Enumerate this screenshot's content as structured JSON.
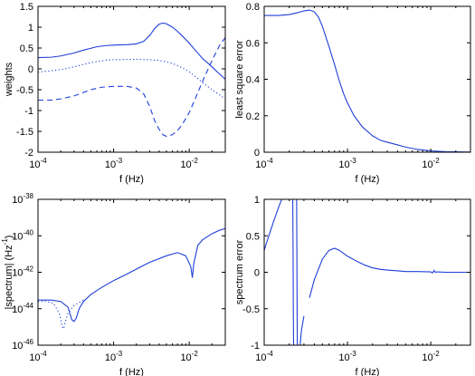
{
  "colors": {
    "series": "#1f3fd8",
    "axes": "#000000",
    "background": "#ffffff"
  },
  "chart_data": [
    {
      "id": "weights",
      "type": "line",
      "xlabel": "f (Hz)",
      "ylabel": "weights",
      "xscale": "log",
      "xlim": [
        0.0001,
        0.03
      ],
      "ylim": [
        -2,
        1.5
      ],
      "yticks": [
        -2,
        -1.5,
        -1,
        -0.5,
        0,
        0.5,
        1,
        1.5
      ],
      "ytick_labels": [
        "-2",
        "-1.5",
        "-1",
        "-0.5",
        "0",
        "0.5",
        "1",
        "1.5"
      ],
      "xtick_labels": [
        {
          "base": "10",
          "exp": "-4",
          "value": 0.0001
        },
        {
          "base": "10",
          "exp": "-3",
          "value": 0.001
        },
        {
          "base": "10",
          "exp": "-2",
          "value": 0.01
        }
      ],
      "series": [
        {
          "style": "solid",
          "x": [
            0.0001,
            0.00015,
            0.0002,
            0.0003,
            0.0004,
            0.0006,
            0.0008,
            0.001,
            0.0015,
            0.002,
            0.0025,
            0.003,
            0.0035,
            0.004,
            0.0045,
            0.005,
            0.006,
            0.007,
            0.008,
            0.01,
            0.012,
            0.015,
            0.02,
            0.025,
            0.03
          ],
          "y": [
            0.27,
            0.28,
            0.31,
            0.38,
            0.45,
            0.53,
            0.56,
            0.57,
            0.58,
            0.6,
            0.66,
            0.8,
            0.97,
            1.07,
            1.1,
            1.08,
            1.0,
            0.9,
            0.8,
            0.62,
            0.45,
            0.25,
            0.05,
            -0.12,
            -0.25
          ]
        },
        {
          "style": "dotted",
          "x": [
            0.0001,
            0.0002,
            0.0003,
            0.0005,
            0.0008,
            0.001,
            0.002,
            0.003,
            0.004,
            0.005,
            0.006,
            0.007,
            0.008,
            0.01,
            0.012,
            0.015,
            0.02,
            0.025,
            0.03
          ],
          "y": [
            -0.08,
            -0.02,
            0.05,
            0.15,
            0.21,
            0.22,
            0.23,
            0.22,
            0.2,
            0.17,
            0.13,
            0.08,
            0.03,
            -0.07,
            -0.18,
            -0.33,
            -0.5,
            -0.62,
            -0.72
          ]
        },
        {
          "style": "dashed",
          "x": [
            0.0001,
            0.00015,
            0.0002,
            0.0003,
            0.0005,
            0.0007,
            0.001,
            0.0015,
            0.002,
            0.0025,
            0.003,
            0.0035,
            0.004,
            0.0045,
            0.005,
            0.006,
            0.007,
            0.008,
            0.01,
            0.012,
            0.015,
            0.02,
            0.025,
            0.03
          ],
          "y": [
            -0.75,
            -0.75,
            -0.72,
            -0.65,
            -0.5,
            -0.44,
            -0.42,
            -0.42,
            -0.46,
            -0.6,
            -0.9,
            -1.25,
            -1.45,
            -1.58,
            -1.62,
            -1.58,
            -1.48,
            -1.35,
            -1.05,
            -0.72,
            -0.3,
            0.2,
            0.55,
            0.75
          ]
        }
      ]
    },
    {
      "id": "least-square-error",
      "type": "line",
      "xlabel": "f (Hz)",
      "ylabel": "least square error",
      "xscale": "log",
      "xlim": [
        0.0001,
        0.03
      ],
      "ylim": [
        0,
        0.8
      ],
      "yticks": [
        0,
        0.2,
        0.4,
        0.6,
        0.8
      ],
      "ytick_labels": [
        "0",
        "0.2",
        "0.4",
        "0.6",
        "0.8"
      ],
      "xtick_labels": [
        {
          "base": "10",
          "exp": "-4",
          "value": 0.0001
        },
        {
          "base": "10",
          "exp": "-3",
          "value": 0.001
        },
        {
          "base": "10",
          "exp": "-2",
          "value": 0.01
        }
      ],
      "series": [
        {
          "style": "solid",
          "x": [
            0.0001,
            0.00015,
            0.0002,
            0.00025,
            0.0003,
            0.00035,
            0.0004,
            0.00045,
            0.0005,
            0.0006,
            0.0007,
            0.0008,
            0.0009,
            0.001,
            0.0012,
            0.0015,
            0.002,
            0.0025,
            0.003,
            0.004,
            0.005,
            0.007,
            0.01,
            0.015,
            0.02,
            0.03
          ],
          "y": [
            0.75,
            0.75,
            0.755,
            0.765,
            0.775,
            0.78,
            0.77,
            0.74,
            0.69,
            0.58,
            0.48,
            0.39,
            0.32,
            0.27,
            0.2,
            0.14,
            0.09,
            0.065,
            0.055,
            0.04,
            0.028,
            0.015,
            0.007,
            0.003,
            0.002,
            0.001
          ]
        }
      ]
    },
    {
      "id": "spectrum",
      "type": "line",
      "xlabel": "f (Hz)",
      "ylabel": "|spectrum| (Hz",
      "ylabel_exp": "-1",
      "ylabel_close": ")",
      "xscale": "log",
      "yscale": "log",
      "xlim": [
        0.0001,
        0.03
      ],
      "ylim": [
        1e-46,
        1e-38
      ],
      "ytick_labels": [
        {
          "base": "10",
          "exp": "-38",
          "value": 1e-38
        },
        {
          "base": "10",
          "exp": "-40",
          "value": 1e-40
        },
        {
          "base": "10",
          "exp": "-42",
          "value": 1e-42
        },
        {
          "base": "10",
          "exp": "-44",
          "value": 1e-44
        },
        {
          "base": "10",
          "exp": "-46",
          "value": 1e-46
        }
      ],
      "xtick_labels": [
        {
          "base": "10",
          "exp": "-4",
          "value": 0.0001
        },
        {
          "base": "10",
          "exp": "-3",
          "value": 0.001
        },
        {
          "base": "10",
          "exp": "-2",
          "value": 0.01
        }
      ],
      "series": [
        {
          "style": "solid",
          "x": [
            0.0001,
            0.00015,
            0.0002,
            0.00025,
            0.00028,
            0.0003,
            0.00032,
            0.00035,
            0.0004,
            0.0005,
            0.0007,
            0.001,
            0.0015,
            0.002,
            0.003,
            0.005,
            0.007,
            0.009,
            0.0105,
            0.011,
            0.0115,
            0.013,
            0.015,
            0.02,
            0.025,
            0.03
          ],
          "y": [
            3e-44,
            3e-44,
            2.5e-44,
            1.2e-44,
            2.5e-45,
            2e-45,
            3e-45,
            1e-44,
            2.5e-44,
            6e-44,
            1.5e-43,
            3.5e-43,
            8e-43,
            1.5e-42,
            3.5e-42,
            8e-42,
            1.2e-41,
            8e-42,
            2e-42,
            5e-43,
            3e-42,
            3e-41,
            6e-41,
            1.3e-40,
            2e-40,
            2.5e-40
          ]
        },
        {
          "style": "dotted",
          "x": [
            0.0001,
            0.00013,
            0.00016,
            0.00019,
            0.00021,
            0.00022,
            0.00023,
            0.00025,
            0.0003,
            0.00035,
            0.0004
          ],
          "y": [
            2.5e-44,
            2.5e-44,
            2e-44,
            6e-45,
            1e-45,
            8e-46,
            2e-45,
            6e-45,
            1.5e-44,
            2.2e-44,
            3e-44
          ]
        }
      ]
    },
    {
      "id": "spectrum-error",
      "type": "line",
      "xlabel": "f (Hz)",
      "ylabel": "spectrum error",
      "xscale": "log",
      "xlim": [
        0.0001,
        0.03
      ],
      "ylim": [
        -1,
        1
      ],
      "yticks": [
        -1,
        -0.5,
        0,
        0.5,
        1
      ],
      "ytick_labels": [
        "-1",
        "-0.5",
        "0",
        "0.5",
        "1"
      ],
      "xtick_labels": [
        {
          "base": "10",
          "exp": "-4",
          "value": 0.0001
        },
        {
          "base": "10",
          "exp": "-3",
          "value": 0.001
        },
        {
          "base": "10",
          "exp": "-2",
          "value": 0.01
        }
      ],
      "series": [
        {
          "style": "solid",
          "x": [
            0.0001,
            0.00011,
            0.00013,
            0.00015,
            0.000165,
            0.000175
          ],
          "y": [
            0.3,
            0.45,
            0.7,
            0.9,
            1.02,
            1.1
          ]
        },
        {
          "style": "solid",
          "x": [
            0.00022,
            0.000222,
            0.000224,
            0.000226
          ],
          "y": [
            1.1,
            0.4,
            -0.6,
            -1.1
          ]
        },
        {
          "style": "solid",
          "x": [
            0.000245,
            0.00025
          ],
          "y": [
            1.1,
            -1.1
          ]
        },
        {
          "style": "solid",
          "x": [
            0.000265,
            0.00028,
            0.0003
          ],
          "y": [
            -1.1,
            -0.8,
            -0.6
          ]
        },
        {
          "style": "solid",
          "x": [
            0.00035,
            0.0004,
            0.0005,
            0.0006,
            0.0007,
            0.0008,
            0.001,
            0.0013,
            0.0016,
            0.002,
            0.0025,
            0.003,
            0.004,
            0.005,
            0.007,
            0.01,
            0.0105,
            0.011,
            0.0113,
            0.012,
            0.015,
            0.02,
            0.03
          ],
          "y": [
            -0.35,
            -0.1,
            0.18,
            0.3,
            0.33,
            0.3,
            0.22,
            0.15,
            0.1,
            0.06,
            0.04,
            0.03,
            0.02,
            0.01,
            0.01,
            0.005,
            -0.01,
            0.025,
            0.0,
            0.005,
            0.0,
            0.0,
            0.0
          ]
        }
      ]
    }
  ]
}
